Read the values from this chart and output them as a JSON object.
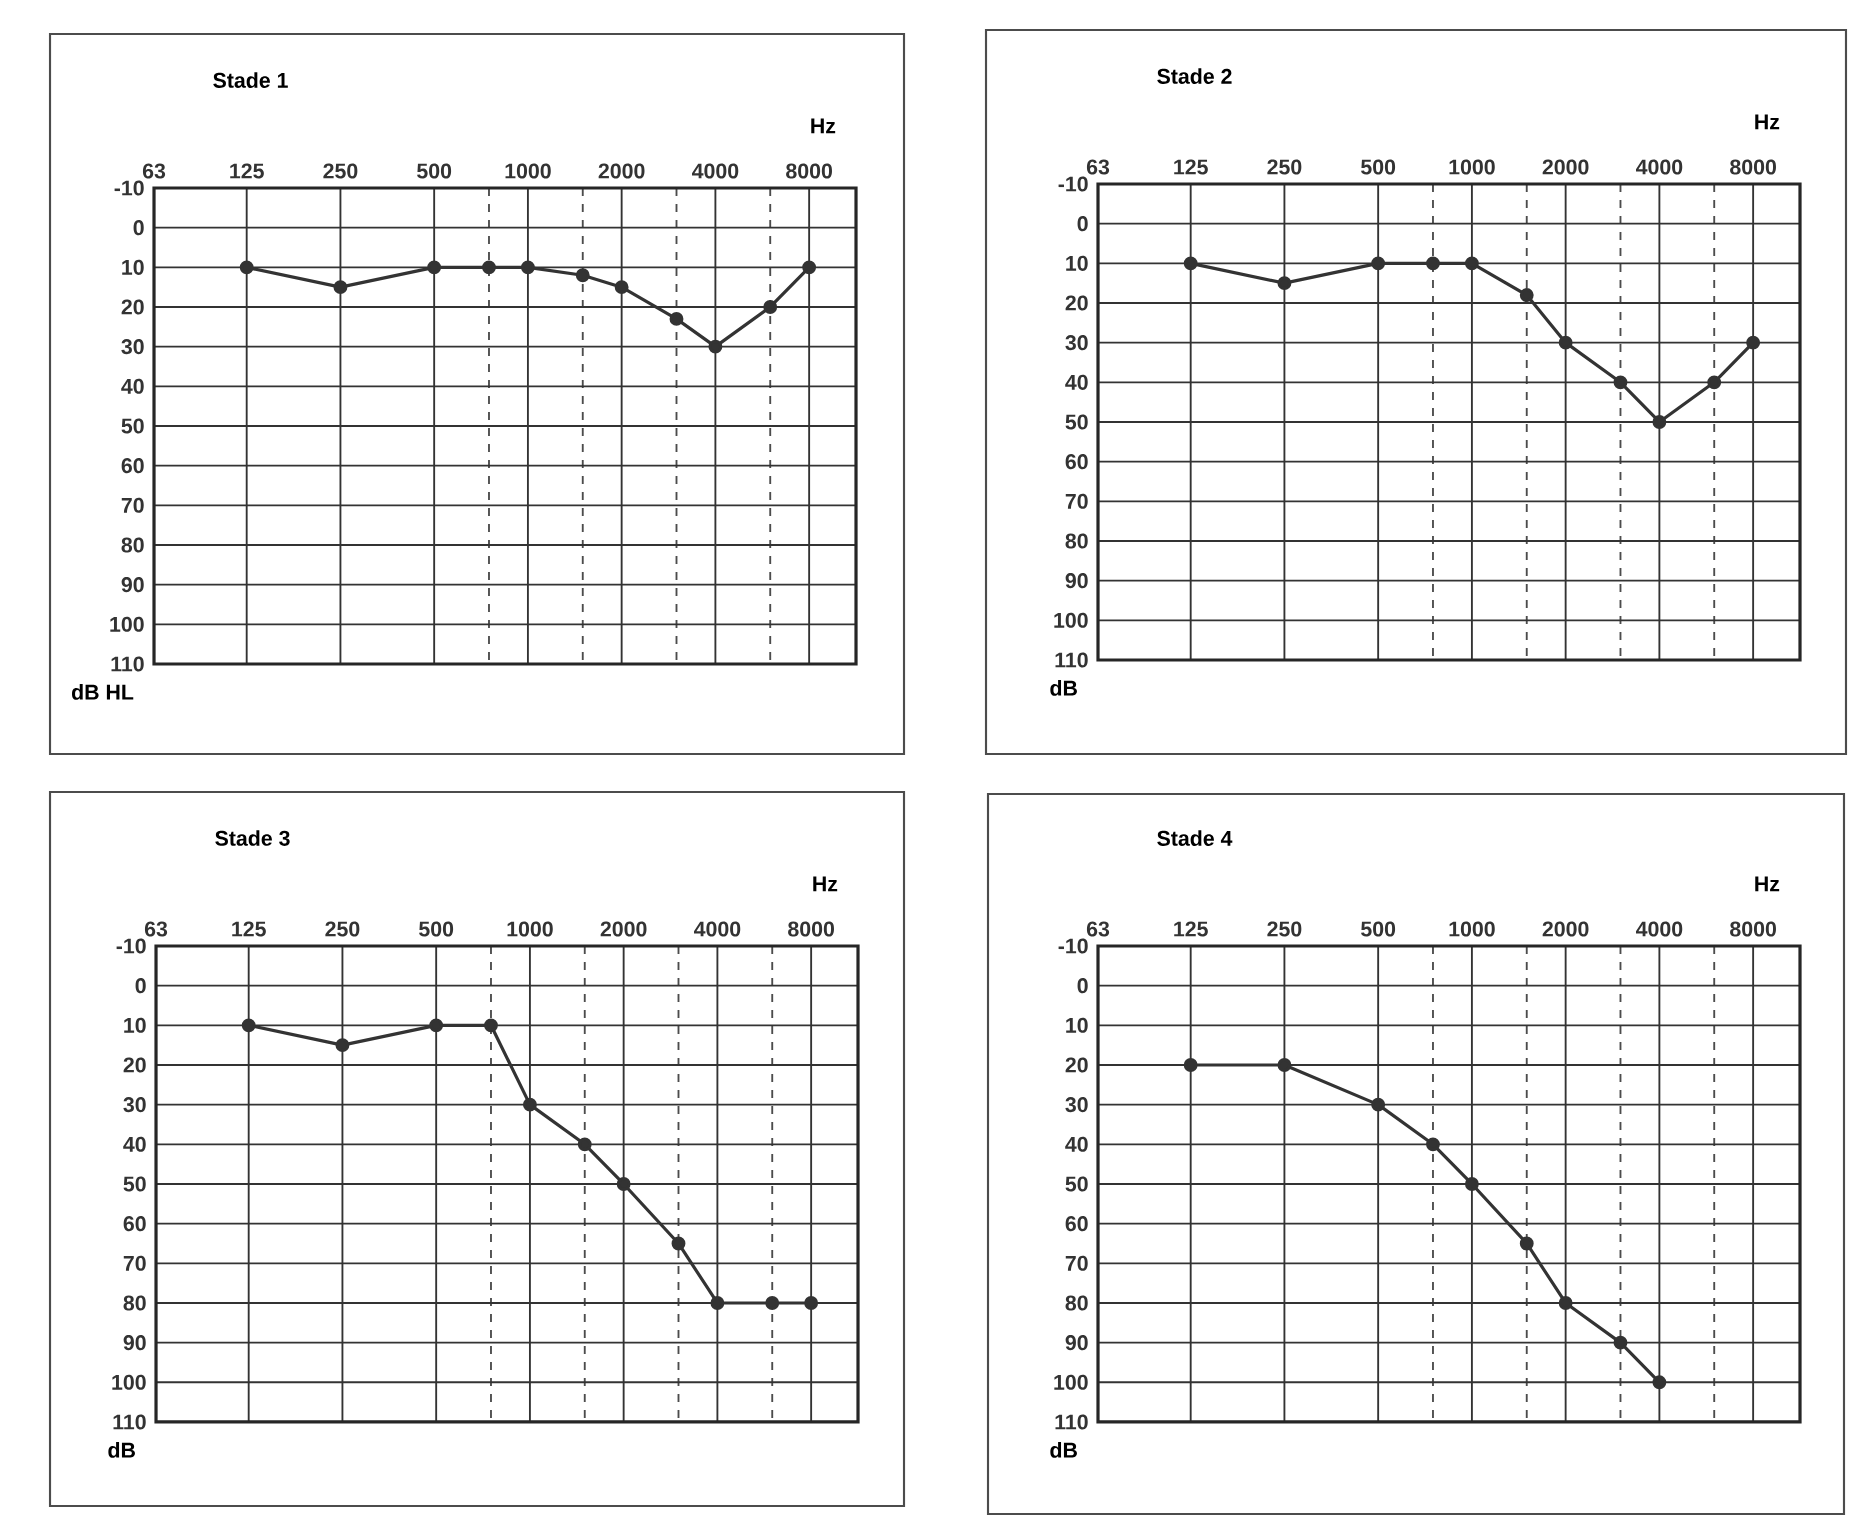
{
  "chart_data": [
    {
      "type": "line",
      "title": "Stade 1",
      "xlabel": "Hz",
      "ylabel": "dB HL",
      "log": "x",
      "grid": true,
      "marker": "circle",
      "line_style": "solid",
      "color": "#333333",
      "x": [
        125,
        250,
        500,
        750,
        1000,
        1500,
        2000,
        3000,
        4000,
        6000,
        8000
      ],
      "values": [
        10,
        15,
        10,
        10,
        10,
        12,
        15,
        23,
        30,
        20,
        10
      ],
      "xlim": [
        63,
        11314
      ],
      "ylim": [
        110,
        -10
      ],
      "xticks": [
        63,
        125,
        250,
        500,
        {
          "value": 750,
          "label": null
        },
        1000,
        {
          "value": 1500,
          "label": null
        },
        2000,
        {
          "value": 3000,
          "label": null
        },
        4000,
        {
          "value": 6000,
          "label": null
        },
        8000
      ],
      "yticks": [
        -10,
        0,
        10,
        20,
        30,
        40,
        50,
        60,
        70,
        80,
        90,
        100,
        110
      ]
    },
    {
      "type": "line",
      "title": "Stade 2",
      "xlabel": "Hz",
      "ylabel": "dB",
      "log": "x",
      "grid": true,
      "marker": "circle",
      "line_style": "solid",
      "color": "#333333",
      "x": [
        125,
        250,
        500,
        750,
        1000,
        1500,
        2000,
        3000,
        4000,
        6000,
        8000
      ],
      "values": [
        10,
        15,
        10,
        10,
        10,
        18,
        30,
        40,
        50,
        40,
        30
      ],
      "xlim": [
        63,
        11314
      ],
      "ylim": [
        110,
        -10
      ],
      "xticks": [
        63,
        125,
        250,
        500,
        {
          "value": 750,
          "label": null
        },
        1000,
        {
          "value": 1500,
          "label": null
        },
        2000,
        {
          "value": 3000,
          "label": null
        },
        4000,
        {
          "value": 6000,
          "label": null
        },
        8000
      ],
      "yticks": [
        -10,
        0,
        10,
        20,
        30,
        40,
        50,
        60,
        70,
        80,
        90,
        100,
        110
      ]
    },
    {
      "type": "line",
      "title": "Stade 3",
      "xlabel": "Hz",
      "ylabel": "dB",
      "log": "x",
      "grid": true,
      "marker": "circle",
      "line_style": "solid",
      "color": "#333333",
      "x": [
        125,
        250,
        500,
        750,
        1000,
        1500,
        2000,
        3000,
        4000,
        6000,
        8000
      ],
      "values": [
        10,
        15,
        10,
        10,
        30,
        40,
        50,
        65,
        80,
        80,
        80
      ],
      "xlim": [
        63,
        11314
      ],
      "ylim": [
        110,
        -10
      ],
      "xticks": [
        63,
        125,
        250,
        500,
        {
          "value": 750,
          "label": null
        },
        1000,
        {
          "value": 1500,
          "label": null
        },
        2000,
        {
          "value": 3000,
          "label": null
        },
        4000,
        {
          "value": 6000,
          "label": null
        },
        8000
      ],
      "yticks": [
        -10,
        0,
        10,
        20,
        30,
        40,
        50,
        60,
        70,
        80,
        90,
        100,
        110
      ]
    },
    {
      "type": "line",
      "title": "Stade 4",
      "xlabel": "Hz",
      "ylabel": "dB",
      "log": "x",
      "grid": true,
      "marker": "circle",
      "line_style": "solid",
      "color": "#333333",
      "x": [
        125,
        250,
        500,
        750,
        1000,
        1500,
        2000,
        3000,
        4000
      ],
      "values": [
        20,
        20,
        30,
        40,
        50,
        65,
        80,
        90,
        100
      ],
      "xlim": [
        63,
        11314
      ],
      "ylim": [
        110,
        -10
      ],
      "xticks": [
        63,
        125,
        250,
        500,
        {
          "value": 750,
          "label": null
        },
        1000,
        {
          "value": 1500,
          "label": null
        },
        2000,
        {
          "value": 3000,
          "label": null
        },
        4000,
        {
          "value": 6000,
          "label": null
        },
        8000
      ],
      "yticks": [
        -10,
        0,
        10,
        20,
        30,
        40,
        50,
        60,
        70,
        80,
        90,
        100,
        110
      ]
    }
  ]
}
